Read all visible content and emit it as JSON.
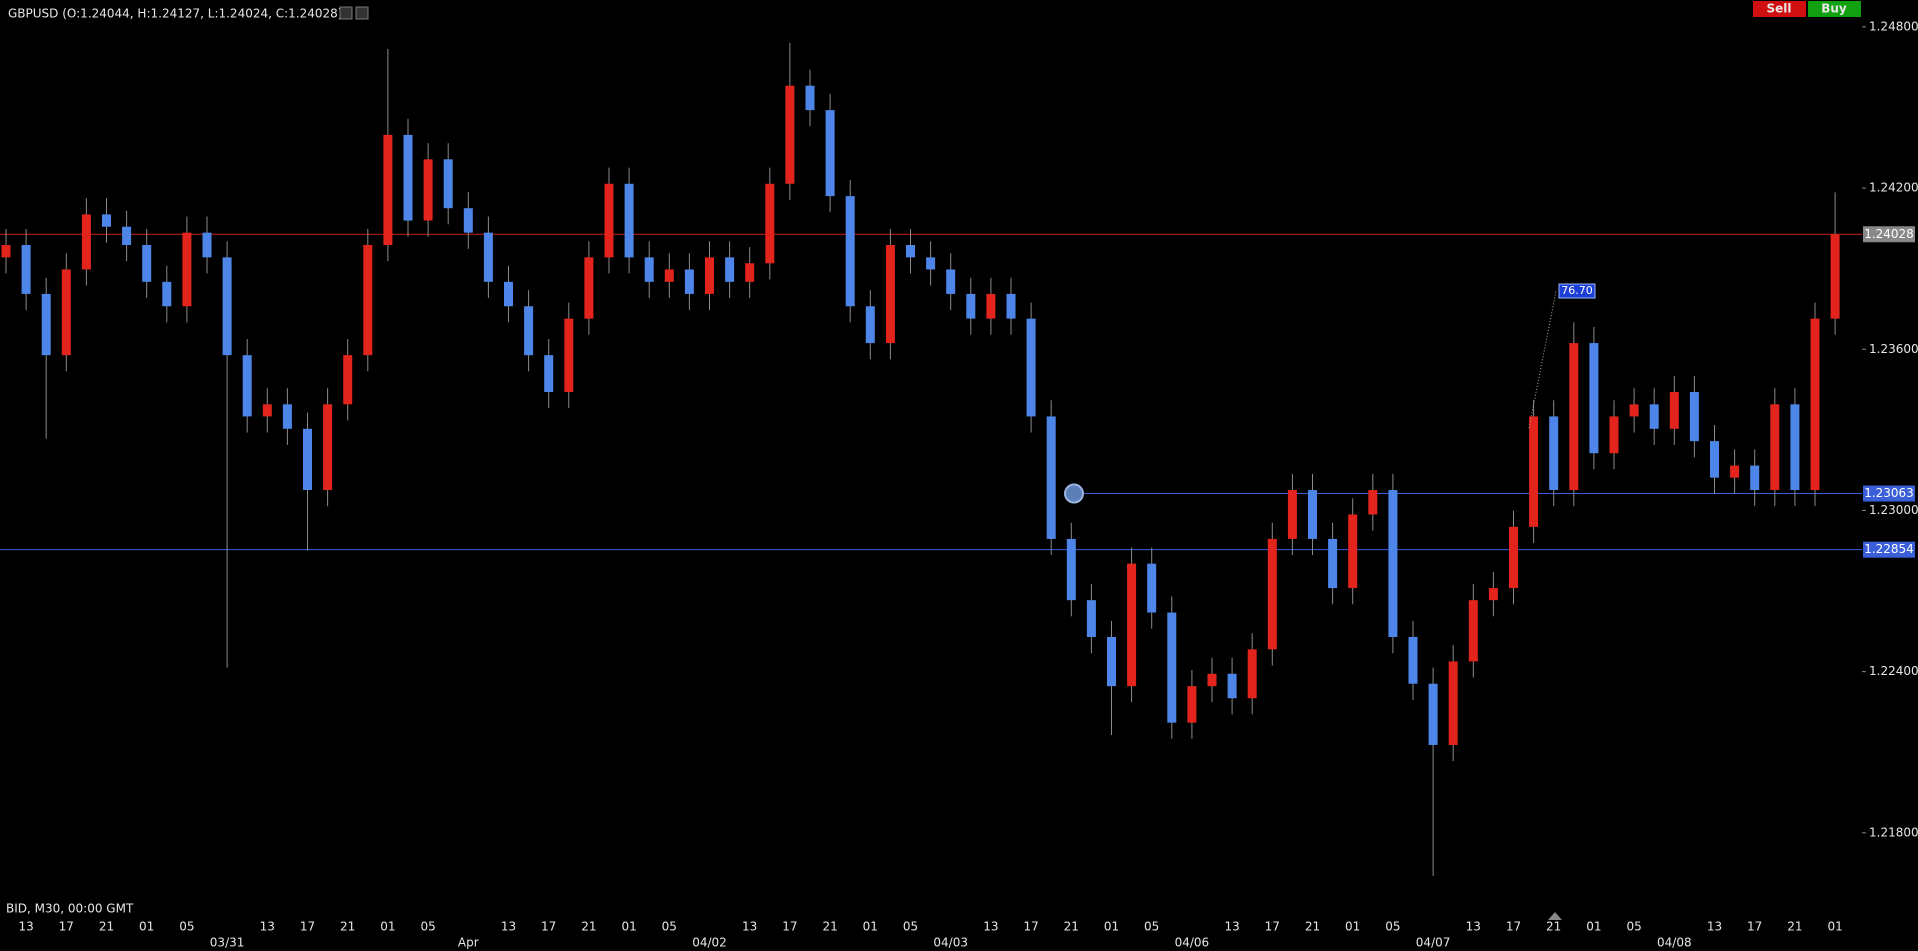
{
  "header": {
    "title": "GBPUSD (O:1.24044, H:1.24127, L:1.24024, C:1.24028)",
    "sell": "Sell",
    "buy": "Buy",
    "footer": "BID, M30, 00:00 GMT"
  },
  "chart_data": {
    "type": "candlestick",
    "categories": [
      null,
      "13",
      null,
      "17",
      null,
      "21",
      null,
      "01",
      null,
      "05",
      null,
      null,
      null,
      "13",
      null,
      "17",
      null,
      "21",
      null,
      "01",
      null,
      "05",
      null,
      null,
      null,
      "13",
      null,
      "17",
      null,
      "21",
      null,
      "01",
      null,
      "05",
      null,
      null,
      null,
      "13",
      null,
      "17",
      null,
      "21",
      null,
      "01",
      null,
      "05",
      null,
      null,
      null,
      "13",
      null,
      "17",
      null,
      "21",
      null,
      "01",
      null,
      "05",
      null,
      null,
      null,
      "13",
      null,
      "17",
      null,
      "21",
      null,
      "01",
      null,
      "05",
      null,
      null,
      null,
      "13",
      null,
      "17",
      null,
      "21",
      null,
      "01",
      null,
      "05",
      null,
      null,
      null,
      "13",
      null,
      "17",
      null,
      "21",
      null,
      "01"
    ],
    "dates": [
      null,
      null,
      null,
      null,
      null,
      null,
      null,
      null,
      null,
      null,
      null,
      "03/31",
      null,
      null,
      null,
      null,
      null,
      null,
      null,
      null,
      null,
      null,
      null,
      "Apr",
      null,
      null,
      null,
      null,
      null,
      null,
      null,
      null,
      null,
      null,
      null,
      "04/02",
      null,
      null,
      null,
      null,
      null,
      null,
      null,
      null,
      null,
      null,
      null,
      "04/03",
      null,
      null,
      null,
      null,
      null,
      null,
      null,
      null,
      null,
      null,
      null,
      "04/06",
      null,
      null,
      null,
      null,
      null,
      null,
      null,
      null,
      null,
      null,
      null,
      "04/07",
      null,
      null,
      null,
      null,
      null,
      null,
      null,
      null,
      null,
      null,
      null,
      "04/08",
      null,
      null,
      null,
      null,
      null,
      null,
      null,
      null
    ],
    "open": [
      1.23942,
      1.23988,
      1.23806,
      1.23578,
      1.23897,
      1.24102,
      1.24056,
      1.23988,
      1.23851,
      1.2376,
      1.24034,
      1.23942,
      1.23578,
      1.2335,
      1.23395,
      1.23304,
      1.23076,
      1.23395,
      1.23578,
      1.23988,
      1.24398,
      1.24079,
      1.24307,
      1.24125,
      1.24034,
      1.23851,
      1.2376,
      1.23578,
      1.23441,
      1.23714,
      1.23942,
      1.24216,
      1.23942,
      1.23851,
      1.23897,
      1.23806,
      1.23942,
      1.23851,
      1.2392,
      1.24216,
      1.24581,
      1.2449,
      1.2417,
      1.2376,
      1.23623,
      1.23988,
      1.23942,
      1.23897,
      1.23806,
      1.23714,
      1.23806,
      1.23714,
      1.2335,
      1.22894,
      1.22666,
      1.22529,
      1.22346,
      1.22802,
      1.2262,
      1.2221,
      1.22346,
      1.22392,
      1.22301,
      1.22483,
      1.22894,
      1.23076,
      1.22894,
      1.22711,
      1.22985,
      1.23076,
      1.22529,
      1.22355,
      1.22127,
      1.22438,
      1.22666,
      1.22711,
      1.22939,
      1.2335,
      1.23076,
      1.23623,
      1.23213,
      1.2335,
      1.23395,
      1.23304,
      1.23441,
      1.23258,
      1.23122,
      1.23167,
      1.23076,
      1.23395,
      1.23076,
      1.23714
    ],
    "high": [
      1.24048,
      1.24048,
      1.23866,
      1.23957,
      1.24162,
      1.24162,
      1.24116,
      1.24048,
      1.23911,
      1.24094,
      1.24094,
      1.24002,
      1.23638,
      1.23455,
      1.23455,
      1.23364,
      1.23455,
      1.23638,
      1.24048,
      1.24718,
      1.24458,
      1.24367,
      1.24367,
      1.24185,
      1.24094,
      1.23911,
      1.2382,
      1.23638,
      1.23774,
      1.24002,
      1.24276,
      1.24276,
      1.24002,
      1.23957,
      1.23957,
      1.24002,
      1.24002,
      1.2398,
      1.24276,
      1.2474,
      1.24641,
      1.2455,
      1.2423,
      1.2382,
      1.24048,
      1.24048,
      1.24002,
      1.23957,
      1.23866,
      1.23866,
      1.23866,
      1.23774,
      1.2341,
      1.22954,
      1.22726,
      1.22589,
      1.22862,
      1.22862,
      1.2268,
      1.22406,
      1.22452,
      1.22452,
      1.22543,
      1.22954,
      1.23136,
      1.23136,
      1.22954,
      1.23045,
      1.23136,
      1.23136,
      1.22589,
      1.22415,
      1.22498,
      1.22726,
      1.22771,
      1.22999,
      1.2341,
      1.2341,
      1.237,
      1.23683,
      1.2341,
      1.23455,
      1.23455,
      1.23501,
      1.23501,
      1.23318,
      1.23227,
      1.23227,
      1.23455,
      1.23455,
      1.23774,
      1.24184
    ],
    "low": [
      1.23882,
      1.23746,
      1.23267,
      1.23518,
      1.23837,
      1.23996,
      1.23928,
      1.23791,
      1.237,
      1.237,
      1.23882,
      1.22415,
      1.2329,
      1.2329,
      1.23244,
      1.2285,
      1.23016,
      1.23335,
      1.23518,
      1.23928,
      1.24019,
      1.24019,
      1.24065,
      1.23974,
      1.23791,
      1.237,
      1.23518,
      1.23381,
      1.23381,
      1.23654,
      1.23882,
      1.23882,
      1.23791,
      1.23791,
      1.23746,
      1.23746,
      1.23791,
      1.23791,
      1.2386,
      1.24156,
      1.2443,
      1.2411,
      1.237,
      1.23563,
      1.23563,
      1.23882,
      1.23837,
      1.23746,
      1.23654,
      1.23654,
      1.23654,
      1.2329,
      1.22834,
      1.22606,
      1.22469,
      1.22164,
      1.22286,
      1.2256,
      1.2215,
      1.2215,
      1.22286,
      1.22241,
      1.22241,
      1.22423,
      1.22834,
      1.22834,
      1.22651,
      1.22651,
      1.22925,
      1.22469,
      1.22295,
      1.2164,
      1.22067,
      1.22378,
      1.22606,
      1.22651,
      1.22879,
      1.23016,
      1.23016,
      1.23153,
      1.23153,
      1.2329,
      1.23244,
      1.23244,
      1.23198,
      1.23062,
      1.23062,
      1.23016,
      1.23016,
      1.23016,
      1.23016,
      1.23654
    ],
    "close": [
      1.23988,
      1.23806,
      1.23578,
      1.23897,
      1.24102,
      1.24056,
      1.23988,
      1.23851,
      1.2376,
      1.24034,
      1.23942,
      1.23578,
      1.2335,
      1.23395,
      1.23304,
      1.23076,
      1.23395,
      1.23578,
      1.23988,
      1.24398,
      1.24079,
      1.24307,
      1.24125,
      1.24034,
      1.23851,
      1.2376,
      1.23578,
      1.23441,
      1.23714,
      1.23942,
      1.24216,
      1.23942,
      1.23851,
      1.23897,
      1.23806,
      1.23942,
      1.23851,
      1.2392,
      1.24216,
      1.24581,
      1.2449,
      1.2417,
      1.2376,
      1.23623,
      1.23988,
      1.23942,
      1.23897,
      1.23806,
      1.23714,
      1.23806,
      1.23714,
      1.2335,
      1.22894,
      1.22666,
      1.22529,
      1.22346,
      1.22802,
      1.2262,
      1.2221,
      1.22346,
      1.22392,
      1.22301,
      1.22483,
      1.22894,
      1.23076,
      1.22894,
      1.22711,
      1.22985,
      1.23076,
      1.22529,
      1.22355,
      1.22127,
      1.22438,
      1.22666,
      1.22711,
      1.22939,
      1.2335,
      1.23076,
      1.23623,
      1.23213,
      1.2335,
      1.23395,
      1.23304,
      1.23441,
      1.23258,
      1.23122,
      1.23167,
      1.23076,
      1.23395,
      1.23076,
      1.23714,
      1.24028
    ],
    "up_color": "#e3241c",
    "down_color": "#4d86e8",
    "wick_color": "#8a8a8a",
    "ylim": [
      1.2155,
      1.249
    ],
    "yticks": [
      {
        "value": 1.248,
        "label": "1.24800"
      },
      {
        "value": 1.242,
        "label": "1.24200"
      },
      {
        "value": 1.236,
        "label": "1.23600"
      },
      {
        "value": 1.23,
        "label": "1.23000"
      },
      {
        "value": 1.224,
        "label": "1.22400"
      },
      {
        "value": 1.218,
        "label": "1.21800"
      }
    ],
    "price_lines": [
      {
        "value": 1.24028,
        "color": "#c8201a"
      },
      {
        "value": 1.23063,
        "color": "#3a5fd8"
      },
      {
        "value": 1.22854,
        "color": "#3a5fd8"
      }
    ],
    "annotation": "76.70"
  }
}
